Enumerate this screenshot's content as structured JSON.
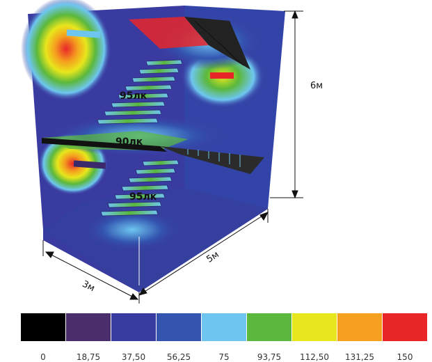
{
  "labels": {
    "upper_flight": "95лк",
    "landing": "90лк",
    "lower_flight": "95лк"
  },
  "dimensions": {
    "height": "6м",
    "length": "5м",
    "width": "3м"
  },
  "legend": {
    "items": [
      {
        "value": "0",
        "color": "#000000"
      },
      {
        "value": "18,75",
        "color": "#4a2e6b"
      },
      {
        "value": "37,50",
        "color": "#3a3ba0"
      },
      {
        "value": "56,25",
        "color": "#3355b0"
      },
      {
        "value": "75",
        "color": "#6ec6f0"
      },
      {
        "value": "93,75",
        "color": "#5bb83c"
      },
      {
        "value": "112,50",
        "color": "#e8e61c"
      },
      {
        "value": "131,25",
        "color": "#f5a01e"
      },
      {
        "value": "150",
        "color": "#e8262a"
      }
    ]
  }
}
